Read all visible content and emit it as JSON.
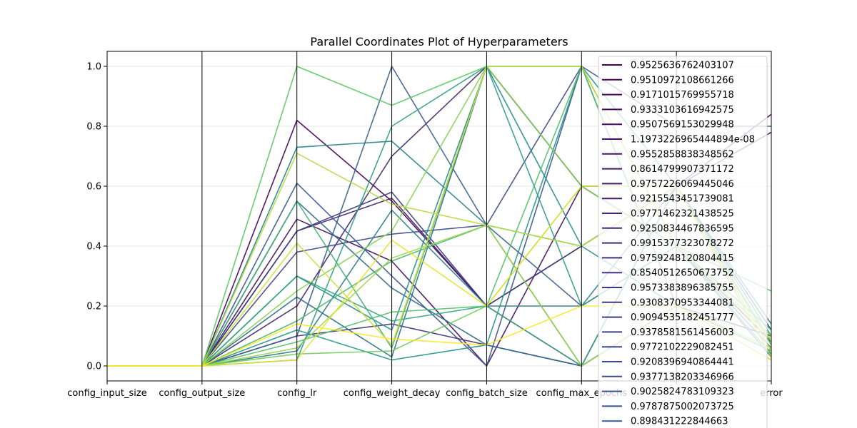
{
  "chart_data": {
    "type": "line",
    "subtype": "parallel-coordinates",
    "title": "Parallel Coordinates Plot of Hyperparameters",
    "categories": [
      "config_input_size",
      "config_output_size",
      "config_lr",
      "config_weight_decay",
      "config_batch_size",
      "config_max_epochs",
      "",
      "error"
    ],
    "ylim": [
      -0.05,
      1.05
    ],
    "yticks": [
      "0.0",
      "0.2",
      "0.4",
      "0.6",
      "0.8",
      "1.0"
    ],
    "grid": true,
    "colormap": "viridis",
    "legend_placement": "upper-right",
    "legend_labels": [
      "0.9525636762403107",
      "0.9510972108661266",
      "0.9171015769955718",
      "0.9333103616942575",
      "0.9507569153029948",
      "1.1973226965444894e-08",
      "0.9552858838348562",
      "0.8614799907371172",
      "0.9757226069445046",
      "0.9215543451739081",
      "0.9771462321438525",
      "0.9250834467836595",
      "0.9915377323078272",
      "0.9759248120804415",
      "0.8540512650673752",
      "0.9573383896385755",
      "0.9308370953344081",
      "0.9094535182451777",
      "0.9378581561456003",
      "0.9772102229082451",
      "0.9208396940864441",
      "0.9377138203346966",
      "0.9025824783109323",
      "0.9787875002073725",
      "0.898431222844663"
    ],
    "legend_colors": [
      "#440154",
      "#440154",
      "#450559",
      "#46075a",
      "#470b5e",
      "#471063",
      "#481467",
      "#481769",
      "#481b6d",
      "#471f70",
      "#472374",
      "#462777",
      "#452a7a",
      "#44307e",
      "#433380",
      "#413683",
      "#403a84",
      "#3e3d86",
      "#3c4188",
      "#3b4589",
      "#39488b",
      "#374c8c",
      "#35508d",
      "#34528d",
      "#32568e"
    ],
    "series": [
      {
        "values": [
          0,
          0,
          0.82,
          0.55,
          0.2,
          0.4,
          0.6,
          0.84
        ]
      },
      {
        "values": [
          0,
          0,
          0.49,
          0.35,
          0,
          0.6,
          0.6,
          0.78
        ]
      },
      {
        "values": [
          0,
          0,
          0.45,
          0.56,
          0.2,
          0,
          0.2,
          0.1
        ]
      },
      {
        "values": [
          0,
          0,
          0.2,
          0.7,
          1.0,
          0.6,
          0.4,
          0.08
        ]
      },
      {
        "values": [
          0,
          0,
          0.1,
          0.14,
          0.07,
          0,
          0.6,
          0.12
        ]
      },
      {
        "values": [
          0,
          0,
          0.45,
          0.58,
          0.2,
          0.4,
          0.6,
          0.05
        ]
      },
      {
        "values": [
          0,
          0,
          0.38,
          0.44,
          0.47,
          1.0,
          0.2,
          0.1
        ]
      },
      {
        "values": [
          0,
          0,
          0.61,
          0.3,
          0,
          1.0,
          0.8,
          0.8
        ]
      },
      {
        "values": [
          0,
          0,
          0.1,
          1.0,
          0.47,
          0.2,
          0.4,
          0.06
        ]
      },
      {
        "values": [
          0,
          0,
          0.55,
          0.26,
          0.07,
          0,
          0.6,
          0.12
        ]
      },
      {
        "values": [
          0,
          0,
          0.23,
          0.03,
          1.0,
          0.6,
          0.4,
          0.03
        ]
      },
      {
        "values": [
          0,
          0,
          0.05,
          0.52,
          0.2,
          0.2,
          0.6,
          0.14
        ]
      },
      {
        "values": [
          0,
          0,
          0.73,
          0.75,
          0.47,
          0,
          0.2,
          0.05
        ]
      },
      {
        "values": [
          0,
          0,
          0.3,
          0.12,
          1.0,
          0.4,
          0.2,
          0.02
        ]
      },
      {
        "values": [
          0,
          0,
          0.12,
          0.02,
          0.07,
          1.0,
          0.6,
          0.1
        ]
      },
      {
        "values": [
          0,
          0,
          0.02,
          0.8,
          1.0,
          0.2,
          0.4,
          0.04
        ]
      },
      {
        "values": [
          0,
          0,
          0.3,
          0.15,
          0.2,
          0,
          0.6,
          0.03
        ]
      },
      {
        "values": [
          0,
          0,
          0.55,
          0.06,
          1.0,
          1.0,
          0.4,
          0.12
        ]
      },
      {
        "values": [
          0,
          0,
          0.15,
          0.35,
          0.47,
          0.4,
          0.6,
          0.07
        ]
      },
      {
        "values": [
          0,
          0,
          0.08,
          0.18,
          0.2,
          1.0,
          0.2,
          0.05
        ]
      },
      {
        "values": [
          0,
          0,
          1.0,
          0.87,
          1.0,
          1.0,
          0.4,
          0.25
        ]
      },
      {
        "values": [
          0,
          0,
          0.04,
          0.05,
          0.2,
          0.6,
          0.6,
          0.08
        ]
      },
      {
        "values": [
          0,
          0,
          0.25,
          0.45,
          1.0,
          0.6,
          0.4,
          0.1
        ]
      },
      {
        "values": [
          0,
          0,
          0.06,
          0.36,
          0.47,
          0,
          0.2,
          0.06
        ]
      },
      {
        "values": [
          0,
          0,
          0.71,
          0.54,
          0.47,
          0.4,
          0.6,
          0.03
        ]
      },
      {
        "values": [
          0,
          0,
          0.41,
          0.07,
          1.0,
          1.0,
          0.4,
          0.09
        ]
      },
      {
        "values": [
          0,
          0,
          0.02,
          0.42,
          0.2,
          0.6,
          0.6,
          0.05
        ]
      },
      {
        "values": [
          0,
          0,
          0.14,
          0.09,
          0.07,
          0.2,
          0.2,
          0.02
        ]
      }
    ]
  }
}
